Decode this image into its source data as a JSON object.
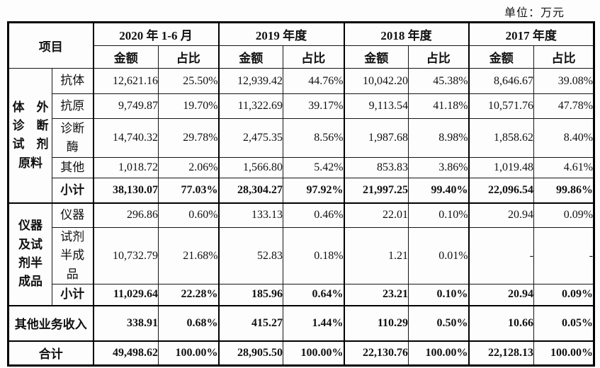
{
  "unit_label": "单位：万元",
  "table": {
    "item_header": "项目",
    "col_groups": [
      {
        "label": "2020 年 1-6 月"
      },
      {
        "label": "2019 年度"
      },
      {
        "label": "2018 年度"
      },
      {
        "label": "2017 年度"
      }
    ],
    "sub_headers": {
      "amount": "金额",
      "ratio": "占比"
    },
    "groups": [
      {
        "label": "体　外\n诊　断\n试　剂\n原料",
        "rows": [
          {
            "label": "抗体",
            "bold": false,
            "values": [
              "12,621.16",
              "25.50%",
              "12,939.42",
              "44.76%",
              "10,042.20",
              "45.38%",
              "8,646.67",
              "39.08%"
            ]
          },
          {
            "label": "抗原",
            "bold": false,
            "values": [
              "9,749.87",
              "19.70%",
              "11,322.69",
              "39.17%",
              "9,113.54",
              "41.18%",
              "10,571.76",
              "47.78%"
            ]
          },
          {
            "label": "诊断\n酶",
            "bold": false,
            "values": [
              "14,740.32",
              "29.78%",
              "2,475.35",
              "8.56%",
              "1,987.68",
              "8.98%",
              "1,858.62",
              "8.40%"
            ]
          },
          {
            "label": "其他",
            "bold": false,
            "values": [
              "1,018.72",
              "2.06%",
              "1,566.80",
              "5.42%",
              "853.83",
              "3.86%",
              "1,019.48",
              "4.61%"
            ]
          },
          {
            "label": "小计",
            "bold": true,
            "values": [
              "38,130.07",
              "77.03%",
              "28,304.27",
              "97.92%",
              "21,997.25",
              "99.40%",
              "22,096.54",
              "99.86%"
            ]
          }
        ]
      },
      {
        "label": "仪器\n及试\n剂半\n成品",
        "rows": [
          {
            "label": "仪器",
            "bold": false,
            "values": [
              "296.86",
              "0.60%",
              "133.13",
              "0.46%",
              "22.01",
              "0.10%",
              "20.94",
              "0.09%"
            ]
          },
          {
            "label": "试剂\n半成\n品",
            "bold": false,
            "values": [
              "10,732.79",
              "21.68%",
              "52.83",
              "0.18%",
              "1.21",
              "0.01%",
              "-",
              "-"
            ]
          },
          {
            "label": "小计",
            "bold": true,
            "values": [
              "11,029.64",
              "22.28%",
              "185.96",
              "0.64%",
              "23.21",
              "0.10%",
              "20.94",
              "0.09%"
            ]
          }
        ]
      }
    ],
    "summary_rows": [
      {
        "label": "其他业务收入",
        "bold": true,
        "values": [
          "338.91",
          "0.68%",
          "415.27",
          "1.44%",
          "110.29",
          "0.50%",
          "10.66",
          "0.05%"
        ]
      },
      {
        "label": "合计",
        "bold": true,
        "values": [
          "49,498.62",
          "100.00%",
          "28,905.50",
          "100.00%",
          "22,130.76",
          "100.00%",
          "22,128.13",
          "100.00%"
        ]
      }
    ]
  }
}
